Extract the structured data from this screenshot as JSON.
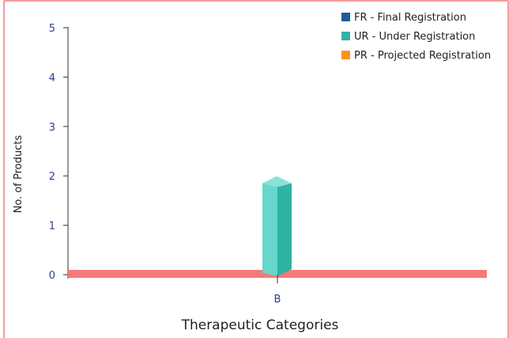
{
  "chart_data": {
    "type": "bar",
    "categories": [
      "B"
    ],
    "series": [
      {
        "name": "FR - Final Registration",
        "values": [
          0
        ],
        "color": "#1f5a9a"
      },
      {
        "name": "UR - Under Registration",
        "values": [
          1.85
        ],
        "color": "#2fb3a3"
      },
      {
        "name": "PR - Projected Registration",
        "values": [
          0
        ],
        "color": "#f7941d"
      }
    ],
    "xlabel": "Therapeutic Categories",
    "ylabel": "No. of Products",
    "ylim": [
      0,
      5
    ],
    "yticks": [
      "0",
      "1",
      "2",
      "3",
      "4",
      "5"
    ],
    "grid": false,
    "legend_position": "top-right",
    "baseline_color": "#f47a7a",
    "frame_color": "#f47a7a",
    "bar_style": "3d"
  }
}
